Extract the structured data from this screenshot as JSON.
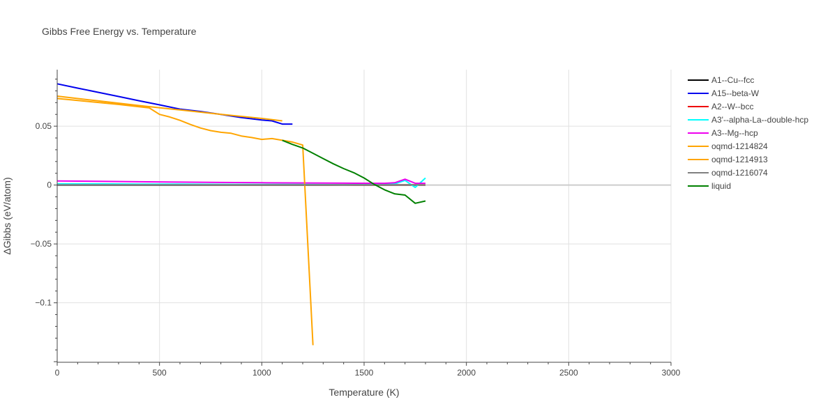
{
  "chart_data": {
    "type": "line",
    "title": "Gibbs Free Energy vs. Temperature",
    "xlabel": "Temperature (K)",
    "ylabel": "ΔGibbs (eV/atom)",
    "xlim": [
      0,
      3000
    ],
    "ylim": [
      -0.1505,
      0.098
    ],
    "xticks": [
      0,
      500,
      1000,
      1500,
      2000,
      2500,
      3000
    ],
    "xtick_labels": [
      "0",
      "500",
      "1000",
      "1500",
      "2000",
      "2500",
      "3000"
    ],
    "yticks": [
      0.05,
      0,
      -0.05,
      -0.1
    ],
    "ytick_labels": [
      "0.05",
      "0",
      "−0.05",
      "−0.1"
    ],
    "grid": true,
    "legend_position": "right",
    "series": [
      {
        "name": "A1--Cu--fcc",
        "color": "#000000",
        "x": [
          0,
          200,
          400,
          600,
          800,
          1000,
          1200,
          1400,
          1600,
          1800
        ],
        "y": [
          0,
          0,
          0,
          0,
          0,
          0,
          0,
          0,
          0,
          0
        ]
      },
      {
        "name": "A15--beta-W",
        "color": "#0000ee",
        "x": [
          0,
          100,
          200,
          300,
          400,
          500,
          600,
          700,
          800,
          900,
          1000,
          1050,
          1100,
          1150
        ],
        "y": [
          0.086,
          0.0823,
          0.0788,
          0.0752,
          0.0716,
          0.0681,
          0.0645,
          0.0625,
          0.06,
          0.0573,
          0.0552,
          0.0545,
          0.0518,
          0.0518
        ]
      },
      {
        "name": "A2--W--bcc",
        "color": "#ee0000",
        "x": [
          0,
          400,
          800,
          1200,
          1600,
          1800
        ],
        "y": [
          0.0005,
          0.0004,
          0.0003,
          0.0003,
          0.0002,
          0.0002
        ]
      },
      {
        "name": "A3'--alpha-La--double-hcp",
        "color": "#00ffff",
        "x": [
          0,
          200,
          400,
          600,
          800,
          1000,
          1200,
          1400,
          1600,
          1650,
          1700,
          1750,
          1800
        ],
        "y": [
          0.001,
          0.001,
          0.0008,
          0.0008,
          0.0006,
          0.0005,
          0.0005,
          0.0003,
          0.0005,
          0.001,
          0.004,
          -0.002,
          0.006
        ]
      },
      {
        "name": "A3--Mg--hcp",
        "color": "#ee00ee",
        "x": [
          0,
          200,
          400,
          600,
          800,
          1000,
          1200,
          1400,
          1600,
          1650,
          1700,
          1750,
          1800
        ],
        "y": [
          0.0035,
          0.0032,
          0.0028,
          0.0025,
          0.0022,
          0.002,
          0.0018,
          0.0016,
          0.0015,
          0.002,
          0.005,
          0.0015,
          0.0015
        ]
      },
      {
        "name": "oqmd-1214824",
        "color": "#ffa500",
        "x": [
          0,
          200,
          400,
          600,
          800,
          1000,
          1100
        ],
        "y": [
          0.0755,
          0.0715,
          0.0675,
          0.0638,
          0.0601,
          0.0566,
          0.0545
        ]
      },
      {
        "name": "oqmd-1214913",
        "color": "#ffa500",
        "x": [
          0,
          150,
          300,
          450,
          500,
          550,
          600,
          650,
          700,
          750,
          800,
          850,
          900,
          950,
          1000,
          1050,
          1100,
          1150,
          1200,
          1250
        ],
        "y": [
          0.0735,
          0.071,
          0.0685,
          0.0655,
          0.06,
          0.0578,
          0.055,
          0.0515,
          0.0485,
          0.0462,
          0.0448,
          0.044,
          0.0417,
          0.0404,
          0.0388,
          0.0395,
          0.038,
          0.0365,
          0.034,
          -0.136
        ]
      },
      {
        "name": "oqmd-1216074",
        "color": "#808080",
        "x": [
          0,
          400,
          800,
          1200,
          1600,
          1800
        ],
        "y": [
          0.0002,
          0.0002,
          0.0002,
          0.0002,
          0.0002,
          0.0002
        ]
      },
      {
        "name": "liquid",
        "color": "#008000",
        "x": [
          1100,
          1150,
          1200,
          1250,
          1300,
          1350,
          1400,
          1450,
          1500,
          1550,
          1600,
          1650,
          1700,
          1750,
          1800
        ],
        "y": [
          0.038,
          0.0345,
          0.0315,
          0.027,
          0.0225,
          0.018,
          0.014,
          0.0105,
          0.006,
          0.0005,
          -0.004,
          -0.0075,
          -0.0085,
          -0.0155,
          -0.0135
        ]
      }
    ]
  }
}
